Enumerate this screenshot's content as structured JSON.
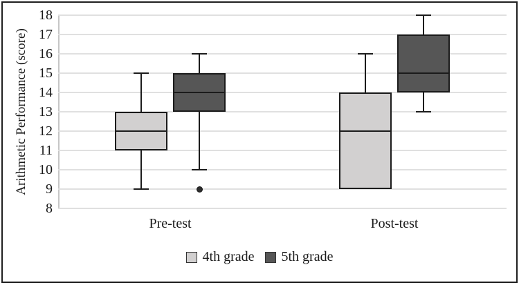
{
  "figure": {
    "ylabel": "Arithmetic Performance (score)"
  },
  "chart_data": {
    "type": "boxplot",
    "title": "",
    "xlabel": "",
    "ylabel": "Arithmetic Performance (score)",
    "ylim": [
      8,
      18
    ],
    "ytick_step": 1,
    "grid": true,
    "legend_position": "bottom-center",
    "categories": [
      "Pre-test",
      "Post-test"
    ],
    "series": [
      {
        "name": "4th grade",
        "fill_color": "#d2d0d0",
        "border_color": "#1b1b1b",
        "boxes": [
          {
            "category": "Pre-test",
            "whisker_low": 9,
            "q1": 11,
            "median": 12,
            "q3": 13,
            "whisker_high": 15,
            "outliers": []
          },
          {
            "category": "Post-test",
            "whisker_low": 9,
            "q1": 9,
            "median": 12,
            "q3": 14,
            "whisker_high": 16,
            "outliers": []
          }
        ]
      },
      {
        "name": "5th grade",
        "fill_color": "#565656",
        "border_color": "#1b1b1b",
        "boxes": [
          {
            "category": "Pre-test",
            "whisker_low": 10,
            "q1": 13,
            "median": 14,
            "q3": 15,
            "whisker_high": 16,
            "outliers": [
              9
            ]
          },
          {
            "category": "Post-test",
            "whisker_low": 13,
            "q1": 14,
            "median": 15,
            "q3": 17,
            "whisker_high": 18,
            "outliers": []
          }
        ]
      }
    ]
  }
}
